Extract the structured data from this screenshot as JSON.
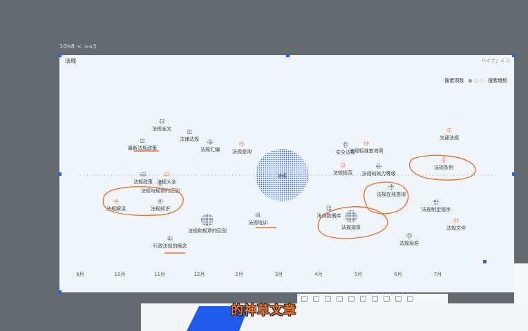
{
  "breadcrumb": "10h8 < >o3",
  "canvas": {
    "title": "法规",
    "corner": "ハイナ」ミコ",
    "legend": {
      "left": "搜索项数",
      "dots": "● ○ ○",
      "right": "搜索趋势"
    },
    "center_label": "法规"
  },
  "axis_months": [
    "9月",
    "10月",
    "11月",
    "12月",
    "2月",
    "3月",
    "4月",
    "5月",
    "6月",
    "7月"
  ],
  "nodes": [
    {
      "label": "法规全文",
      "color": "#4a5a8a",
      "r": 4
    },
    {
      "label": "法律法规",
      "color": "#4a5a8a",
      "r": 4
    },
    {
      "label": "最新法规政策",
      "color": "#4a5a8a",
      "r": 4
    },
    {
      "label": "法规查询",
      "color": "#e8742a",
      "r": 4
    },
    {
      "label": "法规汇编",
      "color": "#4a5a8a",
      "r": 4
    },
    {
      "label": "法规政策",
      "color": "#4a5a8a",
      "r": 4
    },
    {
      "label": "法规大全",
      "color": "#e8742a",
      "r": 4
    },
    {
      "label": "法规知识",
      "color": "#4a5a8a",
      "r": 4
    },
    {
      "label": "法规解读",
      "color": "#e8742a",
      "r": 4
    },
    {
      "label": "法规标准查询网",
      "color": "#e8742a",
      "r": 4
    },
    {
      "label": "交通法规",
      "color": "#e8742a",
      "r": 4
    },
    {
      "label": "法规与规章的区别",
      "color": "#4a5a8a",
      "r": 4
    },
    {
      "label": "法规规范",
      "color": "#e8742a",
      "r": 4
    },
    {
      "label": "法规条例",
      "color": "#e8742a",
      "r": 4
    },
    {
      "label": "法规在线查询",
      "color": "#4a5a8a",
      "r": 4
    },
    {
      "label": "法规的效力等级",
      "color": "#4a5a8a",
      "r": 4
    },
    {
      "label": "法规制定程序",
      "color": "#4a5a8a",
      "r": 4
    },
    {
      "label": "法规和规章的区别",
      "color": "#4a5a8a",
      "r": 9
    },
    {
      "label": "法规规章",
      "color": "#4a5a8a",
      "r": 9
    },
    {
      "label": "法规培训",
      "color": "#4a5a8a",
      "r": 4
    },
    {
      "label": "法规数据库",
      "color": "#4a5a8a",
      "r": 4
    },
    {
      "label": "行政法规的概念",
      "color": "#4a5a8a",
      "r": 4
    },
    {
      "label": "法规文件",
      "color": "#e8742a",
      "r": 4
    },
    {
      "label": "法规标准",
      "color": "#4a5a8a",
      "r": 4
    },
    {
      "label": "安全法规",
      "color": "#4a5a8a",
      "r": 4
    }
  ],
  "caption": "的神草文章",
  "colors": {
    "accent": "#2b66d9",
    "annotation": "#e8742a",
    "node": "#4a5a8a"
  }
}
